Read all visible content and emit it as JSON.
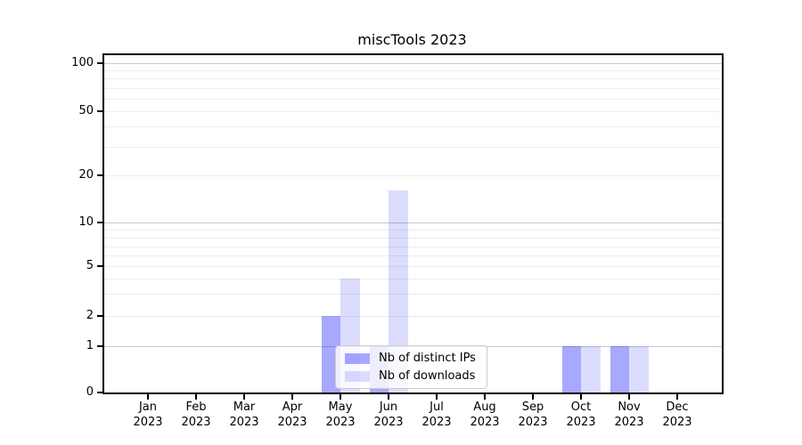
{
  "title": "miscTools 2023",
  "legend": {
    "items": [
      {
        "label": "Nb of distinct IPs",
        "color": "#0000FF57"
      },
      {
        "label": "Nb of downloads",
        "color": "#0000FF23"
      }
    ]
  },
  "colors": {
    "bar_distinct_ips": "#0000FF57",
    "bar_downloads": "#0000FF23",
    "major_gridline": "#c9c9c9",
    "minor_gridline": "#ededed",
    "spine": "#000000",
    "background": "#ffffff"
  },
  "chart_data": {
    "type": "bar",
    "title": "miscTools 2023",
    "x_months": [
      "Jan",
      "Feb",
      "Mar",
      "Apr",
      "May",
      "Jun",
      "Jul",
      "Aug",
      "Sep",
      "Oct",
      "Nov",
      "Dec"
    ],
    "x_year": "2023",
    "series": [
      {
        "name": "Nb of distinct IPs",
        "color": "#0000FF57",
        "values": [
          0,
          0,
          0,
          0,
          2,
          1,
          0,
          0,
          0,
          1,
          1,
          0
        ]
      },
      {
        "name": "Nb of downloads",
        "color": "#0000FF23",
        "values": [
          0,
          0,
          0,
          0,
          4,
          16,
          0,
          0,
          0,
          1,
          1,
          0
        ]
      }
    ],
    "yscale": "log-like with linear segment near zero",
    "yticks": [
      0,
      1,
      2,
      5,
      10,
      20,
      50,
      100
    ],
    "grid_major": [
      1,
      10,
      100
    ],
    "grid_minor": [
      2,
      3,
      4,
      5,
      6,
      7,
      8,
      9,
      20,
      30,
      40,
      50,
      60,
      70,
      80,
      90
    ],
    "ylim": [
      0,
      112
    ],
    "grid": "horizontal",
    "legend_position": "lower center"
  }
}
